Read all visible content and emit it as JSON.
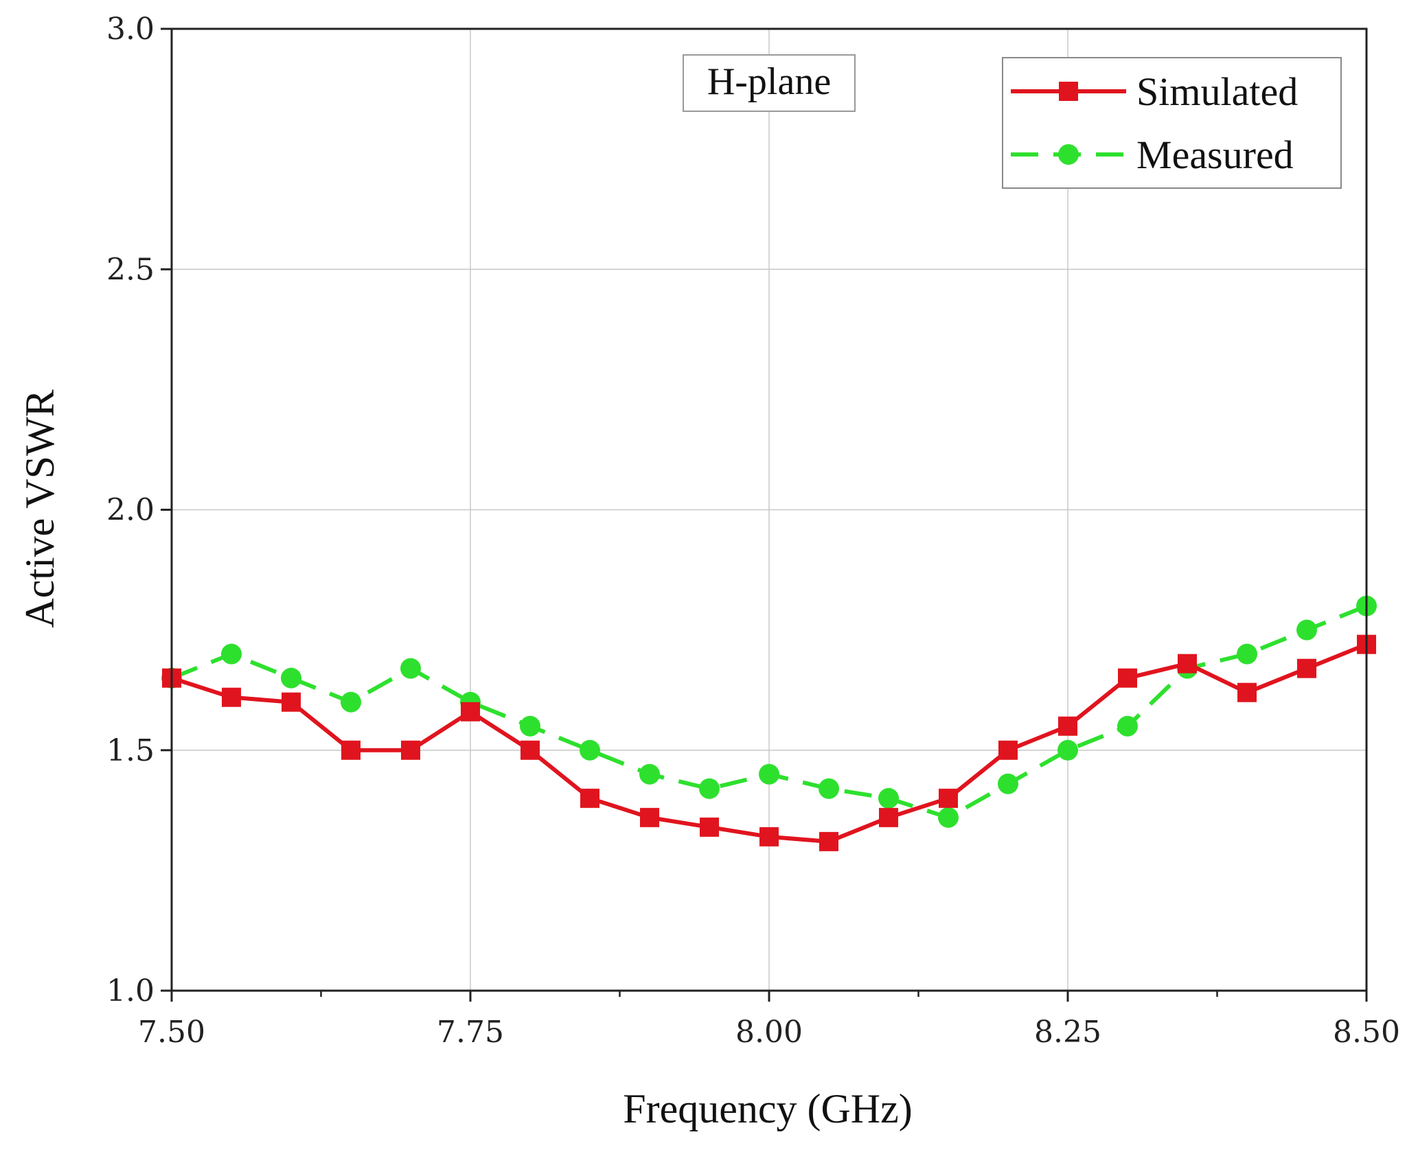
{
  "chart_data": {
    "type": "line",
    "xlabel": "Frequency (GHz)",
    "ylabel": "Active VSWR",
    "xlim": [
      7.5,
      8.5
    ],
    "ylim": [
      1.0,
      3.0
    ],
    "x_ticks": [
      7.5,
      7.625,
      7.75,
      7.875,
      8.0,
      8.125,
      8.25,
      8.375,
      8.5
    ],
    "x_tick_labels": [
      "7.50",
      "7.75",
      "8.00",
      "8.25",
      "8.50"
    ],
    "y_tick_labels": [
      "1.0",
      "1.5",
      "2.0",
      "2.5",
      "3.0"
    ],
    "y_ticks": [
      1.0,
      1.5,
      2.0,
      2.5,
      3.0
    ],
    "grid": true,
    "annotation": "H-plane",
    "legend_position": "top-right",
    "x": [
      7.5,
      7.55,
      7.6,
      7.65,
      7.7,
      7.75,
      7.8,
      7.85,
      7.9,
      7.95,
      8.0,
      8.05,
      8.1,
      8.15,
      8.2,
      8.25,
      8.3,
      8.35,
      8.4,
      8.45,
      8.5
    ],
    "series": [
      {
        "name": "Simulated",
        "color": "#e0141e",
        "marker": "square",
        "line_style": "solid",
        "values": [
          1.65,
          1.61,
          1.6,
          1.5,
          1.5,
          1.58,
          1.5,
          1.4,
          1.36,
          1.34,
          1.32,
          1.31,
          1.36,
          1.4,
          1.5,
          1.55,
          1.65,
          1.68,
          1.62,
          1.67,
          1.72
        ]
      },
      {
        "name": "Measured",
        "color": "#2ee02e",
        "marker": "circle",
        "line_style": "dashed",
        "values": [
          1.65,
          1.7,
          1.65,
          1.6,
          1.67,
          1.6,
          1.55,
          1.5,
          1.45,
          1.42,
          1.45,
          1.42,
          1.4,
          1.36,
          1.43,
          1.5,
          1.55,
          1.67,
          1.7,
          1.75,
          1.8
        ]
      }
    ]
  }
}
